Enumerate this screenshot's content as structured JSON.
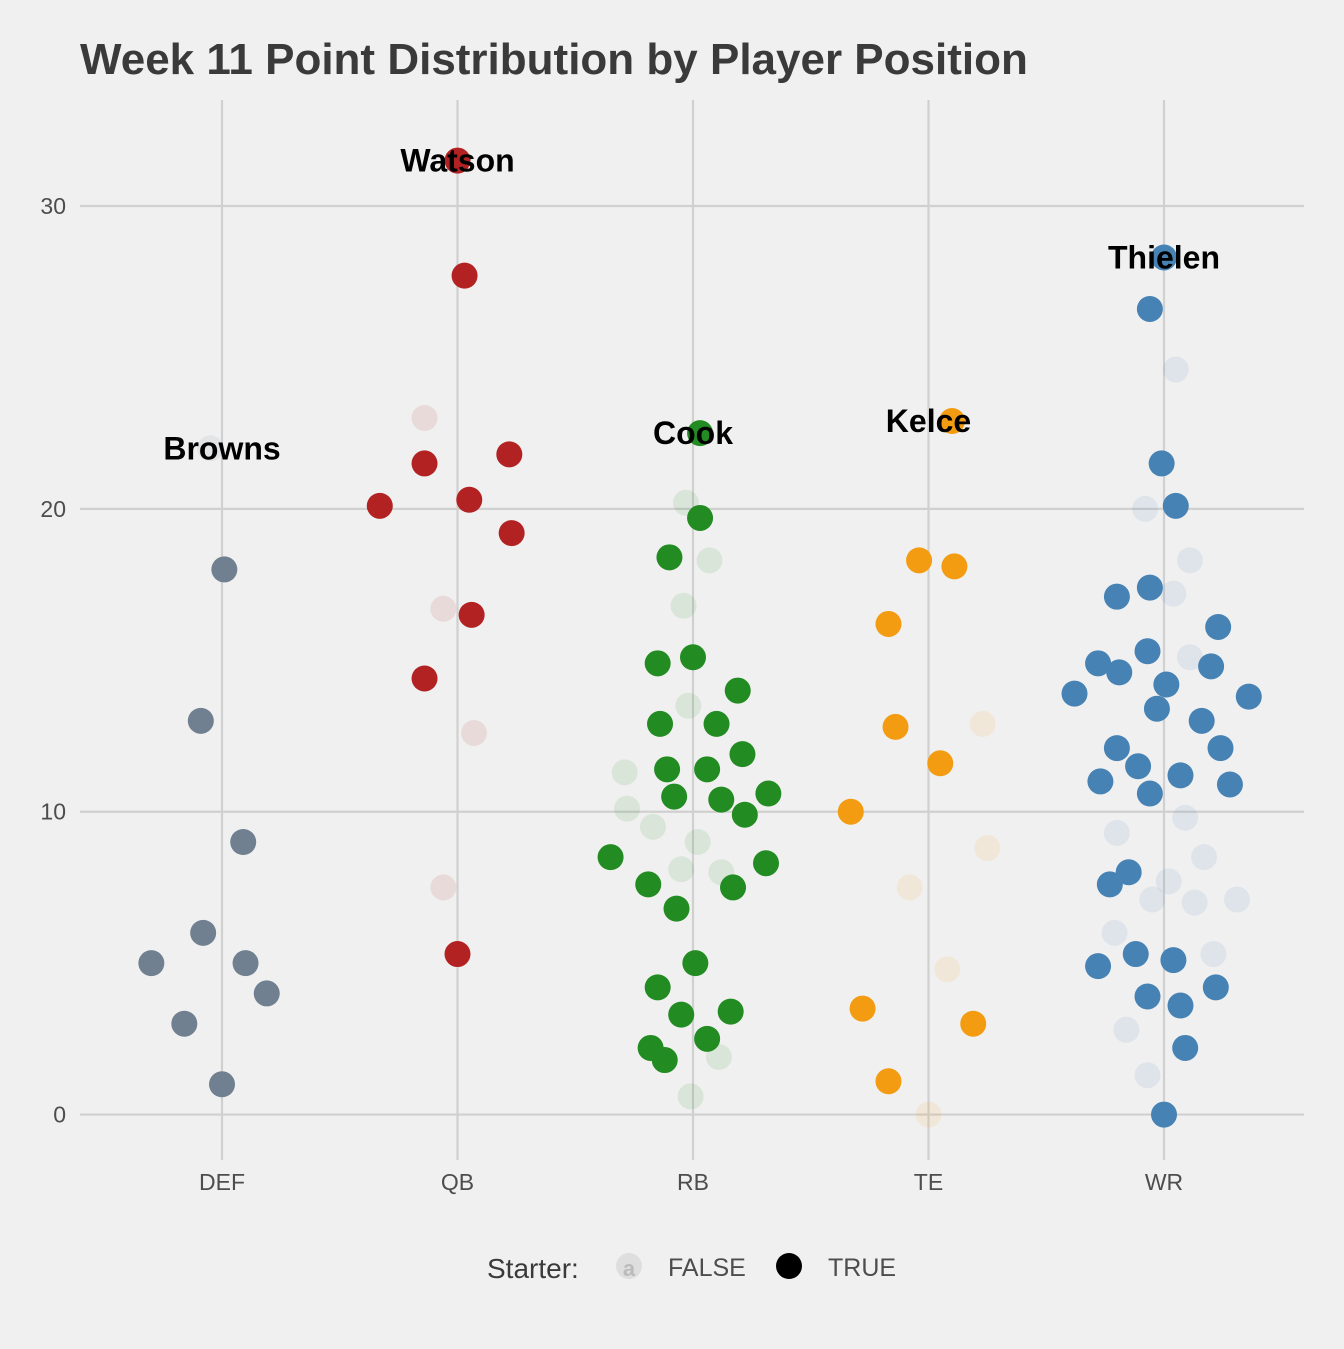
{
  "chart_data": {
    "type": "scatter",
    "title": "Week 11 Point Distribution by Player Position",
    "xlabel": "",
    "ylabel": "",
    "categories": [
      "DEF",
      "QB",
      "RB",
      "TE",
      "WR"
    ],
    "ylim": [
      -1.5,
      33.5
    ],
    "yticks": [
      0,
      10,
      20,
      30
    ],
    "grid": true,
    "jittered": true,
    "position_colors": {
      "DEF": "#708090",
      "QB": "#b22222",
      "RB": "#228b22",
      "TE": "#f39c12",
      "WR": "#4682b4"
    },
    "legend": {
      "title": "Starter:",
      "placement": "bottom",
      "items": [
        {
          "label": "FALSE",
          "starter": false,
          "key_glyph": "a"
        },
        {
          "label": "TRUE",
          "starter": true
        }
      ]
    },
    "series": [
      {
        "position": "DEF",
        "points": [
          {
            "x": -0.05,
            "y": 22.0,
            "starter": false,
            "label": "Browns"
          },
          {
            "x": 0.01,
            "y": 18.0,
            "starter": true
          },
          {
            "x": -0.09,
            "y": 13.0,
            "starter": true
          },
          {
            "x": 0.09,
            "y": 9.0,
            "starter": true
          },
          {
            "x": -0.08,
            "y": 6.0,
            "starter": true
          },
          {
            "x": 0.1,
            "y": 5.0,
            "starter": true
          },
          {
            "x": -0.3,
            "y": 5.0,
            "starter": true
          },
          {
            "x": 0.19,
            "y": 4.0,
            "starter": true
          },
          {
            "x": -0.16,
            "y": 3.0,
            "starter": true
          },
          {
            "x": 0.0,
            "y": 1.0,
            "starter": true
          }
        ]
      },
      {
        "position": "QB",
        "points": [
          {
            "x": 0.0,
            "y": 31.5,
            "starter": true,
            "label": "Watson"
          },
          {
            "x": 0.03,
            "y": 27.7,
            "starter": true
          },
          {
            "x": -0.14,
            "y": 23.0,
            "starter": false
          },
          {
            "x": -0.14,
            "y": 21.5,
            "starter": true
          },
          {
            "x": 0.22,
            "y": 21.8,
            "starter": true
          },
          {
            "x": -0.33,
            "y": 20.1,
            "starter": true
          },
          {
            "x": 0.05,
            "y": 20.3,
            "starter": true
          },
          {
            "x": 0.23,
            "y": 19.2,
            "starter": true
          },
          {
            "x": -0.06,
            "y": 16.7,
            "starter": false
          },
          {
            "x": 0.06,
            "y": 16.5,
            "starter": true
          },
          {
            "x": -0.14,
            "y": 14.4,
            "starter": true
          },
          {
            "x": 0.07,
            "y": 12.6,
            "starter": false
          },
          {
            "x": -0.06,
            "y": 7.5,
            "starter": false
          },
          {
            "x": 0.0,
            "y": 5.3,
            "starter": true
          }
        ]
      },
      {
        "position": "RB",
        "points": [
          {
            "x": 0.03,
            "y": 22.5,
            "starter": true,
            "label": "Cook"
          },
          {
            "x": -0.03,
            "y": 20.2,
            "starter": false
          },
          {
            "x": 0.03,
            "y": 19.7,
            "starter": true
          },
          {
            "x": -0.1,
            "y": 18.4,
            "starter": true
          },
          {
            "x": 0.07,
            "y": 18.3,
            "starter": false
          },
          {
            "x": -0.04,
            "y": 16.8,
            "starter": false
          },
          {
            "x": -0.15,
            "y": 14.9,
            "starter": true
          },
          {
            "x": 0.0,
            "y": 15.1,
            "starter": true
          },
          {
            "x": 0.19,
            "y": 14.0,
            "starter": true
          },
          {
            "x": -0.02,
            "y": 13.5,
            "starter": false
          },
          {
            "x": -0.14,
            "y": 12.9,
            "starter": true
          },
          {
            "x": 0.1,
            "y": 12.9,
            "starter": true
          },
          {
            "x": 0.21,
            "y": 11.9,
            "starter": true
          },
          {
            "x": -0.29,
            "y": 11.3,
            "starter": false
          },
          {
            "x": -0.11,
            "y": 11.4,
            "starter": true
          },
          {
            "x": 0.06,
            "y": 11.4,
            "starter": true
          },
          {
            "x": -0.08,
            "y": 10.5,
            "starter": true
          },
          {
            "x": 0.12,
            "y": 10.4,
            "starter": true
          },
          {
            "x": 0.32,
            "y": 10.6,
            "starter": true
          },
          {
            "x": -0.28,
            "y": 10.1,
            "starter": false
          },
          {
            "x": 0.22,
            "y": 9.9,
            "starter": true
          },
          {
            "x": -0.17,
            "y": 9.5,
            "starter": false
          },
          {
            "x": 0.02,
            "y": 9.0,
            "starter": false
          },
          {
            "x": -0.35,
            "y": 8.5,
            "starter": true
          },
          {
            "x": 0.31,
            "y": 8.3,
            "starter": true
          },
          {
            "x": -0.05,
            "y": 8.1,
            "starter": false
          },
          {
            "x": 0.12,
            "y": 8.0,
            "starter": false
          },
          {
            "x": -0.19,
            "y": 7.6,
            "starter": true
          },
          {
            "x": 0.17,
            "y": 7.5,
            "starter": true
          },
          {
            "x": -0.07,
            "y": 6.8,
            "starter": true
          },
          {
            "x": 0.01,
            "y": 5.0,
            "starter": true
          },
          {
            "x": -0.15,
            "y": 4.2,
            "starter": true
          },
          {
            "x": -0.05,
            "y": 3.3,
            "starter": true
          },
          {
            "x": 0.16,
            "y": 3.4,
            "starter": true
          },
          {
            "x": 0.06,
            "y": 2.5,
            "starter": true
          },
          {
            "x": -0.18,
            "y": 2.2,
            "starter": true
          },
          {
            "x": -0.12,
            "y": 1.8,
            "starter": true
          },
          {
            "x": 0.11,
            "y": 1.9,
            "starter": false
          },
          {
            "x": -0.01,
            "y": 0.6,
            "starter": false
          }
        ]
      },
      {
        "position": "TE",
        "points": [
          {
            "x": 0.1,
            "y": 22.9,
            "starter": true,
            "label": "Kelce"
          },
          {
            "x": -0.04,
            "y": 18.3,
            "starter": true
          },
          {
            "x": 0.11,
            "y": 18.1,
            "starter": true
          },
          {
            "x": -0.17,
            "y": 16.2,
            "starter": true
          },
          {
            "x": -0.14,
            "y": 12.8,
            "starter": true
          },
          {
            "x": 0.23,
            "y": 12.9,
            "starter": false
          },
          {
            "x": 0.05,
            "y": 11.6,
            "starter": true
          },
          {
            "x": -0.33,
            "y": 10.0,
            "starter": true
          },
          {
            "x": 0.25,
            "y": 8.8,
            "starter": false
          },
          {
            "x": -0.08,
            "y": 7.5,
            "starter": false
          },
          {
            "x": 0.08,
            "y": 4.8,
            "starter": false
          },
          {
            "x": -0.28,
            "y": 3.5,
            "starter": true
          },
          {
            "x": 0.19,
            "y": 3.0,
            "starter": true
          },
          {
            "x": -0.17,
            "y": 1.1,
            "starter": true
          },
          {
            "x": 0.0,
            "y": 0.0,
            "starter": false
          }
        ]
      },
      {
        "position": "WR",
        "points": [
          {
            "x": 0.0,
            "y": 28.3,
            "starter": true,
            "label": "Thielen"
          },
          {
            "x": -0.06,
            "y": 26.6,
            "starter": true
          },
          {
            "x": 0.05,
            "y": 24.6,
            "starter": false
          },
          {
            "x": -0.01,
            "y": 21.5,
            "starter": true
          },
          {
            "x": -0.08,
            "y": 20.0,
            "starter": false
          },
          {
            "x": 0.05,
            "y": 20.1,
            "starter": true
          },
          {
            "x": 0.11,
            "y": 18.3,
            "starter": false
          },
          {
            "x": -0.2,
            "y": 17.1,
            "starter": true
          },
          {
            "x": -0.06,
            "y": 17.4,
            "starter": true
          },
          {
            "x": 0.04,
            "y": 17.2,
            "starter": false
          },
          {
            "x": 0.23,
            "y": 16.1,
            "starter": true
          },
          {
            "x": -0.28,
            "y": 14.9,
            "starter": true
          },
          {
            "x": -0.19,
            "y": 14.6,
            "starter": true
          },
          {
            "x": -0.07,
            "y": 15.3,
            "starter": true
          },
          {
            "x": 0.01,
            "y": 14.2,
            "starter": true
          },
          {
            "x": 0.11,
            "y": 15.1,
            "starter": false
          },
          {
            "x": 0.2,
            "y": 14.8,
            "starter": true
          },
          {
            "x": -0.38,
            "y": 13.9,
            "starter": true
          },
          {
            "x": -0.03,
            "y": 13.4,
            "starter": true
          },
          {
            "x": 0.16,
            "y": 13.0,
            "starter": true
          },
          {
            "x": 0.36,
            "y": 13.8,
            "starter": true
          },
          {
            "x": -0.2,
            "y": 12.1,
            "starter": true
          },
          {
            "x": -0.11,
            "y": 11.5,
            "starter": true
          },
          {
            "x": 0.24,
            "y": 12.1,
            "starter": true
          },
          {
            "x": -0.27,
            "y": 11.0,
            "starter": true
          },
          {
            "x": 0.07,
            "y": 11.2,
            "starter": true
          },
          {
            "x": 0.28,
            "y": 10.9,
            "starter": true
          },
          {
            "x": -0.06,
            "y": 10.6,
            "starter": true
          },
          {
            "x": 0.09,
            "y": 9.8,
            "starter": false
          },
          {
            "x": -0.2,
            "y": 9.3,
            "starter": false
          },
          {
            "x": 0.17,
            "y": 8.5,
            "starter": false
          },
          {
            "x": -0.15,
            "y": 8.0,
            "starter": true
          },
          {
            "x": 0.02,
            "y": 7.7,
            "starter": false
          },
          {
            "x": -0.23,
            "y": 7.6,
            "starter": true
          },
          {
            "x": -0.05,
            "y": 7.1,
            "starter": false
          },
          {
            "x": 0.13,
            "y": 7.0,
            "starter": false
          },
          {
            "x": 0.31,
            "y": 7.1,
            "starter": false
          },
          {
            "x": -0.21,
            "y": 6.0,
            "starter": false
          },
          {
            "x": -0.12,
            "y": 5.3,
            "starter": true
          },
          {
            "x": 0.04,
            "y": 5.1,
            "starter": true
          },
          {
            "x": 0.21,
            "y": 5.3,
            "starter": false
          },
          {
            "x": -0.28,
            "y": 4.9,
            "starter": true
          },
          {
            "x": 0.22,
            "y": 4.2,
            "starter": true
          },
          {
            "x": -0.07,
            "y": 3.9,
            "starter": true
          },
          {
            "x": 0.07,
            "y": 3.6,
            "starter": true
          },
          {
            "x": -0.16,
            "y": 2.8,
            "starter": false
          },
          {
            "x": 0.09,
            "y": 2.2,
            "starter": true
          },
          {
            "x": -0.07,
            "y": 1.3,
            "starter": false
          },
          {
            "x": 0.0,
            "y": 0.0,
            "starter": true
          }
        ]
      }
    ]
  }
}
